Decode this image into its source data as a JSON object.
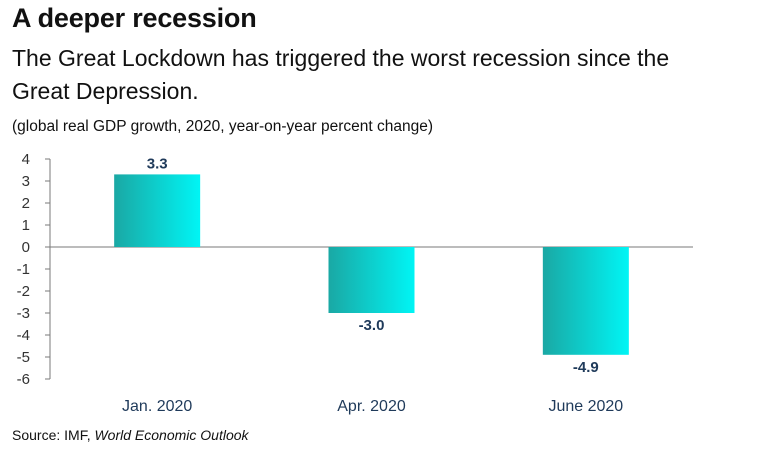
{
  "header": {
    "title": "A deeper recession",
    "subtitle": "The Great Lockdown has triggered the worst recession since the Great Depression.",
    "note": "(global real GDP growth, 2020, year-on-year percent change)"
  },
  "footer": {
    "source_prefix": "Source: IMF, ",
    "source_publication": "World Economic Outlook"
  },
  "chart_data": {
    "type": "bar",
    "categories": [
      "Jan. 2020",
      "Apr. 2020",
      "June 2020"
    ],
    "values": [
      3.3,
      -3.0,
      -4.9
    ],
    "data_labels": [
      "3.3",
      "-3.0",
      "-4.9"
    ],
    "title": "A deeper recession",
    "xlabel": "",
    "ylabel": "",
    "ylim": [
      -6,
      4
    ],
    "yticks": [
      4,
      3,
      2,
      1,
      0,
      -1,
      -2,
      -3,
      -4,
      -5,
      -6
    ],
    "grid": false,
    "colors": {
      "bar_dark": "#1aa8a4",
      "bar_light": "#00f5f5",
      "axis": "#7a7a7a",
      "label": "#1f3a5a",
      "tick_text": "#333333",
      "category_text": "#1f3a5a"
    }
  }
}
